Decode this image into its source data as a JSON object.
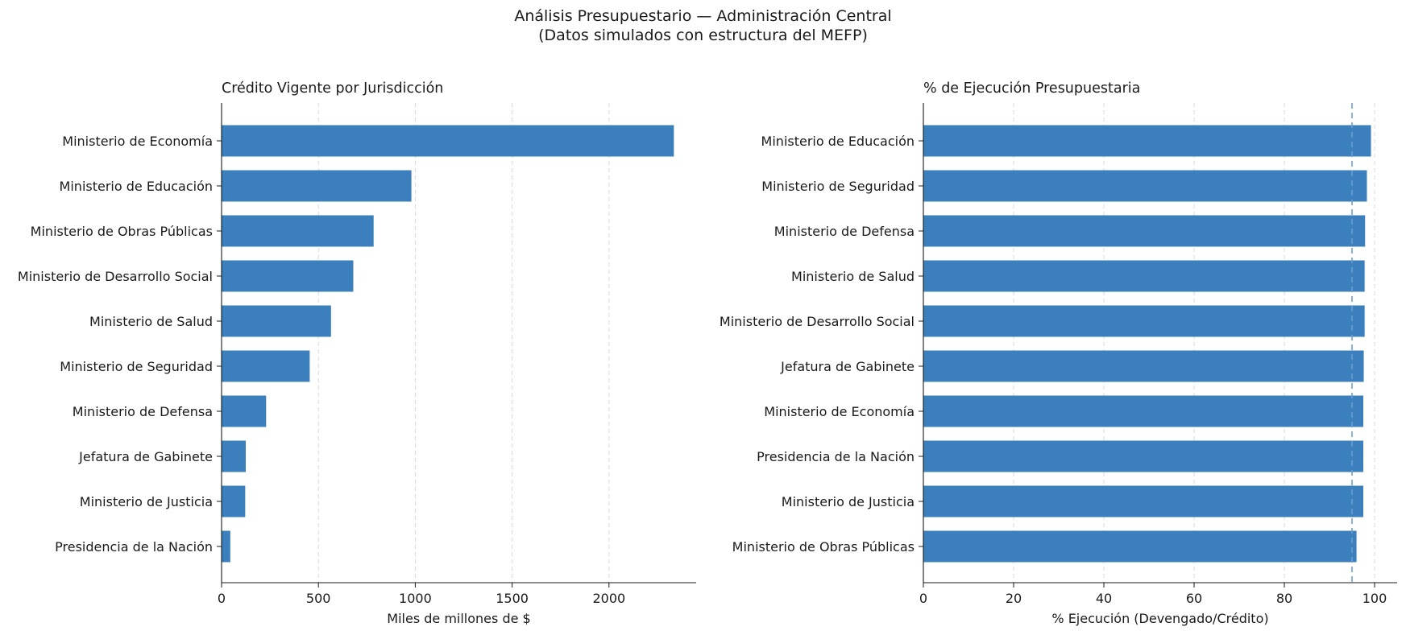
{
  "figure": {
    "title_line1": "Análisis Presupuestario — Administración Central",
    "title_line2": "(Datos simulados con estructura del MEFP)"
  },
  "colors": {
    "bar": "#3b80bc",
    "grid": "#d9d9d9",
    "refline": "#6a9fd0"
  },
  "chart_data": [
    {
      "type": "bar",
      "orientation": "horizontal",
      "title": "Crédito Vigente por Jurisdicción",
      "xlabel": "Miles de millones de $",
      "ylabel": "",
      "xlim": [
        0,
        2450
      ],
      "xticks": [
        0,
        500,
        1000,
        1500,
        2000
      ],
      "grid": "x",
      "categories": [
        "Ministerio de Economía",
        "Ministerio de Educación",
        "Ministerio de Obras Públicas",
        "Ministerio de Desarrollo Social",
        "Ministerio de Salud",
        "Ministerio de Seguridad",
        "Ministerio de Defensa",
        "Jefatura de Gabinete",
        "Ministerio de Justicia",
        "Presidencia de la Nación"
      ],
      "values": [
        2335,
        980,
        785,
        680,
        565,
        455,
        230,
        125,
        122,
        45
      ]
    },
    {
      "type": "bar",
      "orientation": "horizontal",
      "title": "% de Ejecución Presupuestaria",
      "xlabel": "% Ejecución (Devengado/Crédito)",
      "ylabel": "",
      "xlim": [
        0,
        105
      ],
      "xticks": [
        0,
        20,
        40,
        60,
        80,
        100
      ],
      "grid": "x",
      "reference_line": 95,
      "categories": [
        "Ministerio de Educación",
        "Ministerio de Seguridad",
        "Ministerio de Defensa",
        "Ministerio de Salud",
        "Ministerio de Desarrollo Social",
        "Jefatura de Gabinete",
        "Ministerio de Economía",
        "Presidencia de la Nación",
        "Ministerio de Justicia",
        "Ministerio de Obras Públicas"
      ],
      "values": [
        99.2,
        98.3,
        97.9,
        97.8,
        97.8,
        97.6,
        97.5,
        97.5,
        97.5,
        96.0
      ]
    }
  ]
}
